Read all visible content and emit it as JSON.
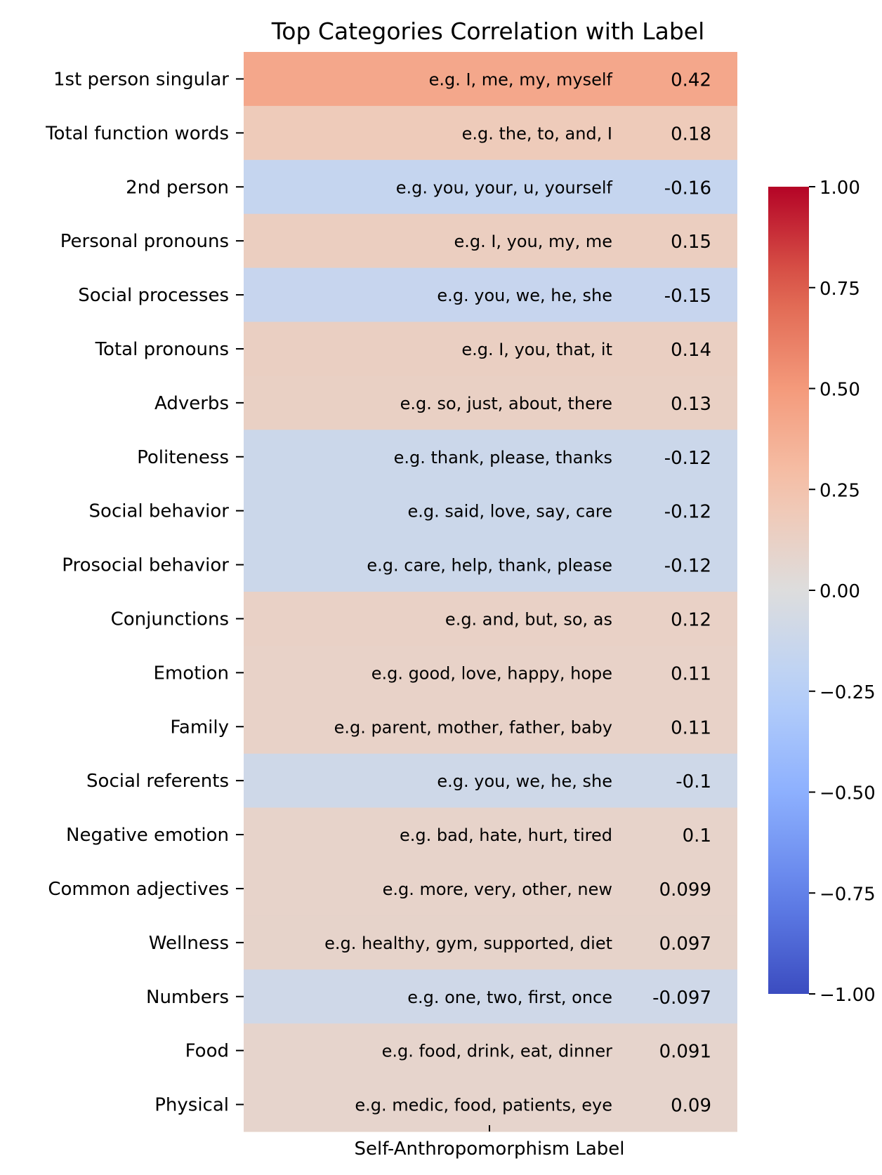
{
  "chart_data": {
    "type": "heatmap",
    "title": "Top Categories Correlation with Label",
    "xlabel": "Self-Anthropomorphism Label",
    "columns": [
      "Self-Anthropomorphism Label"
    ],
    "colormap": "coolwarm",
    "vmin": -1.0,
    "vmax": 1.0,
    "colorbar_ticks": [
      "1.00",
      "0.75",
      "0.50",
      "0.25",
      "0.00",
      "−0.25",
      "−0.50",
      "−0.75",
      "−1.00"
    ],
    "rows": [
      {
        "category": "1st person singular",
        "examples": "e.g. I, me, my, myself",
        "value": 0.42,
        "label": "0.42"
      },
      {
        "category": "Total function words",
        "examples": "e.g. the, to, and, I",
        "value": 0.18,
        "label": "0.18"
      },
      {
        "category": "2nd person",
        "examples": "e.g. you, your, u, yourself",
        "value": -0.16,
        "label": "-0.16"
      },
      {
        "category": "Personal pronouns",
        "examples": "e.g. I, you, my, me",
        "value": 0.15,
        "label": "0.15"
      },
      {
        "category": "Social processes",
        "examples": "e.g. you, we, he, she",
        "value": -0.15,
        "label": "-0.15"
      },
      {
        "category": "Total pronouns",
        "examples": "e.g. I, you, that, it",
        "value": 0.14,
        "label": "0.14"
      },
      {
        "category": "Adverbs",
        "examples": "e.g. so, just, about, there",
        "value": 0.13,
        "label": "0.13"
      },
      {
        "category": "Politeness",
        "examples": "e.g. thank, please, thanks",
        "value": -0.12,
        "label": "-0.12"
      },
      {
        "category": "Social behavior",
        "examples": "e.g. said, love, say, care",
        "value": -0.12,
        "label": "-0.12"
      },
      {
        "category": "Prosocial behavior",
        "examples": "e.g. care, help, thank, please",
        "value": -0.12,
        "label": "-0.12"
      },
      {
        "category": "Conjunctions",
        "examples": "e.g. and, but, so, as",
        "value": 0.12,
        "label": "0.12"
      },
      {
        "category": "Emotion",
        "examples": "e.g. good, love, happy, hope",
        "value": 0.11,
        "label": "0.11"
      },
      {
        "category": "Family",
        "examples": "e.g. parent, mother, father, baby",
        "value": 0.11,
        "label": "0.11"
      },
      {
        "category": "Social referents",
        "examples": "e.g. you, we, he, she",
        "value": -0.1,
        "label": "-0.1"
      },
      {
        "category": "Negative emotion",
        "examples": "e.g. bad, hate, hurt, tired",
        "value": 0.1,
        "label": "0.1"
      },
      {
        "category": "Common adjectives",
        "examples": "e.g. more, very, other, new",
        "value": 0.099,
        "label": "0.099"
      },
      {
        "category": "Wellness",
        "examples": "e.g. healthy, gym, supported, diet",
        "value": 0.097,
        "label": "0.097"
      },
      {
        "category": "Numbers",
        "examples": "e.g. one, two, first, once",
        "value": -0.097,
        "label": "-0.097"
      },
      {
        "category": "Food",
        "examples": "e.g. food, drink, eat, dinner",
        "value": 0.091,
        "label": "0.091"
      },
      {
        "category": "Physical",
        "examples": "e.g. medic, food, patients, eye",
        "value": 0.09,
        "label": "0.09"
      }
    ]
  }
}
